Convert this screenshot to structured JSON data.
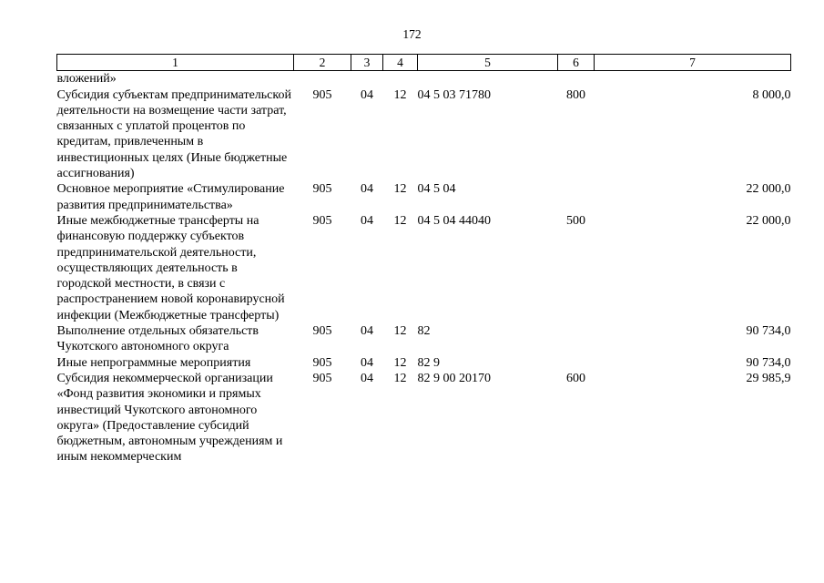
{
  "page_number": "172",
  "table": {
    "headers": [
      "1",
      "2",
      "3",
      "4",
      "5",
      "6",
      "7"
    ],
    "rows": [
      {
        "cells": [
          "вложений»",
          "",
          "",
          "",
          "",
          "",
          ""
        ]
      },
      {
        "cells": [
          "Субсидия субъектам предпринимательской деятельности на возмещение части затрат, связанных с уплатой процентов по кредитам, привлеченным в инвестиционных целях (Иные бюджетные ассигнования)",
          "905",
          "04",
          "12",
          "04 5 03 71780",
          "800",
          "8 000,0"
        ]
      },
      {
        "cells": [
          "Основное мероприятие «Стимулирование развития предпринимательства»",
          "905",
          "04",
          "12",
          "04 5 04",
          "",
          "22 000,0"
        ]
      },
      {
        "cells": [
          "Иные межбюджетные трансферты на финансовую поддержку субъектов предпринимательской деятельности, осуществляющих деятельность в городской местности, в связи с распространением новой коронавирусной инфекции (Межбюджетные трансферты)",
          "905",
          "04",
          "12",
          "04 5 04 44040",
          "500",
          "22 000,0"
        ]
      },
      {
        "cells": [
          "Выполнение отдельных обязательств Чукотского автономного округа",
          "905",
          "04",
          "12",
          "82",
          "",
          "90 734,0"
        ]
      },
      {
        "cells": [
          "Иные непрограммные мероприятия",
          "905",
          "04",
          "12",
          "82 9",
          "",
          "90 734,0"
        ]
      },
      {
        "cells": [
          "Субсидия некоммерческой организации «Фонд развития экономики и прямых инвестиций Чукотского автономного округа» (Предоставление субсидий бюджетным, автономным учреждениям и иным некоммерческим",
          "905",
          "04",
          "12",
          "82 9 00 20170",
          "600",
          "29 985,9"
        ]
      }
    ]
  }
}
